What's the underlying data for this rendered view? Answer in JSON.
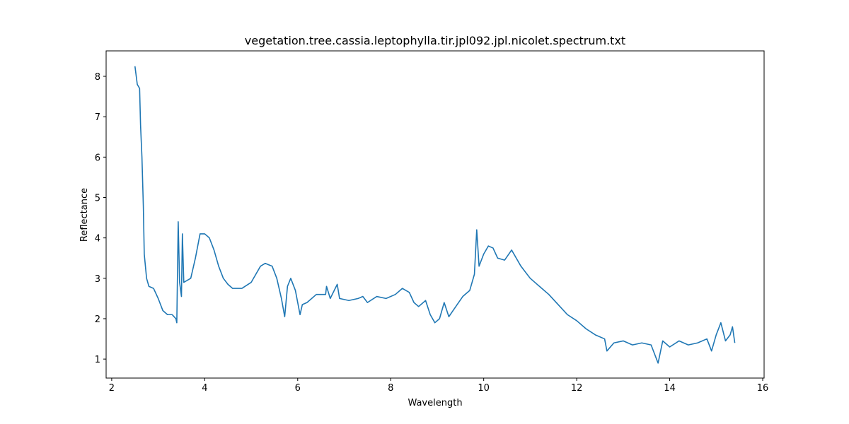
{
  "chart_data": {
    "type": "line",
    "title": "vegetation.tree.cassia.leptophylla.tir.jpl092.jpl.nicolet.spectrum.txt",
    "x_label": "Wavelength",
    "y_label": "Reflectance",
    "xlim": [
      1.88,
      16.03
    ],
    "ylim": [
      0.53,
      8.63
    ],
    "xticks": [
      2,
      4,
      6,
      8,
      10,
      12,
      14,
      16
    ],
    "yticks": [
      1,
      2,
      3,
      4,
      5,
      6,
      7,
      8
    ],
    "grid": false,
    "series": [
      {
        "color": "#1f77b4",
        "x": [
          2.5,
          2.55,
          2.6,
          2.62,
          2.65,
          2.68,
          2.7,
          2.75,
          2.8,
          2.9,
          3.0,
          3.1,
          3.2,
          3.3,
          3.38,
          3.4,
          3.43,
          3.46,
          3.5,
          3.52,
          3.55,
          3.7,
          3.8,
          3.9,
          4.0,
          4.1,
          4.2,
          4.3,
          4.4,
          4.5,
          4.6,
          4.8,
          5.0,
          5.2,
          5.3,
          5.45,
          5.55,
          5.65,
          5.72,
          5.78,
          5.85,
          5.95,
          6.05,
          6.1,
          6.2,
          6.4,
          6.6,
          6.62,
          6.7,
          6.85,
          6.9,
          7.1,
          7.3,
          7.4,
          7.5,
          7.7,
          7.9,
          8.1,
          8.25,
          8.4,
          8.5,
          8.6,
          8.75,
          8.85,
          8.95,
          9.05,
          9.15,
          9.25,
          9.4,
          9.55,
          9.7,
          9.8,
          9.85,
          9.9,
          10.0,
          10.1,
          10.2,
          10.3,
          10.45,
          10.6,
          10.7,
          10.8,
          11.0,
          11.2,
          11.4,
          11.6,
          11.8,
          12.0,
          12.2,
          12.4,
          12.6,
          12.65,
          12.8,
          13.0,
          13.2,
          13.4,
          13.6,
          13.75,
          13.85,
          14.0,
          14.2,
          14.4,
          14.6,
          14.8,
          14.9,
          15.0,
          15.1,
          15.2,
          15.3,
          15.35,
          15.4
        ],
        "values": [
          8.25,
          7.8,
          7.7,
          6.8,
          6.0,
          4.8,
          3.6,
          3.0,
          2.8,
          2.75,
          2.5,
          2.2,
          2.1,
          2.1,
          2.0,
          1.9,
          4.4,
          2.9,
          2.55,
          4.1,
          2.9,
          3.0,
          3.5,
          4.1,
          4.1,
          4.0,
          3.7,
          3.3,
          3.0,
          2.85,
          2.75,
          2.75,
          2.9,
          3.3,
          3.37,
          3.3,
          3.0,
          2.5,
          2.05,
          2.8,
          3.0,
          2.7,
          2.1,
          2.35,
          2.4,
          2.6,
          2.6,
          2.8,
          2.5,
          2.85,
          2.5,
          2.45,
          2.5,
          2.55,
          2.4,
          2.55,
          2.5,
          2.6,
          2.75,
          2.65,
          2.4,
          2.3,
          2.45,
          2.1,
          1.9,
          2.0,
          2.4,
          2.05,
          2.3,
          2.55,
          2.7,
          3.1,
          4.2,
          3.3,
          3.6,
          3.8,
          3.75,
          3.5,
          3.45,
          3.7,
          3.5,
          3.3,
          3.0,
          2.8,
          2.6,
          2.35,
          2.1,
          1.95,
          1.75,
          1.6,
          1.5,
          1.2,
          1.4,
          1.45,
          1.35,
          1.4,
          1.35,
          0.9,
          1.45,
          1.3,
          1.45,
          1.35,
          1.4,
          1.5,
          1.2,
          1.6,
          1.9,
          1.45,
          1.6,
          1.8,
          1.4
        ]
      }
    ]
  }
}
